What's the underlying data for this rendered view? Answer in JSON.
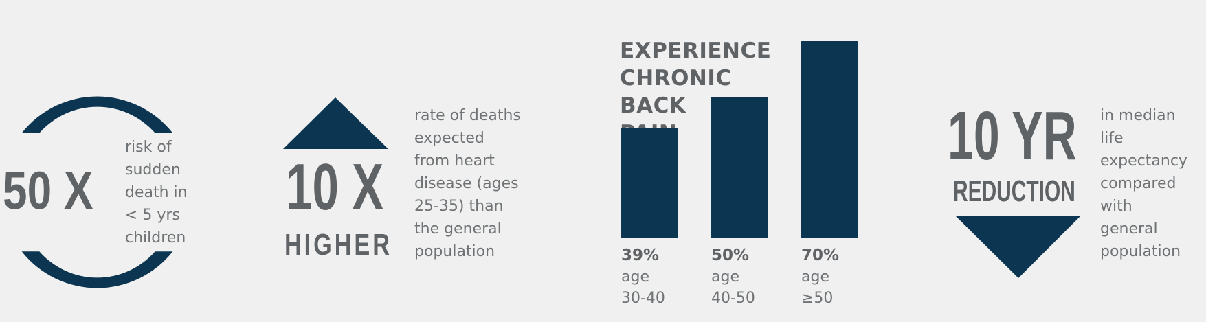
{
  "stat_50x": {
    "value": "50 X",
    "description_lines": [
      "risk of",
      "sudden",
      "death in",
      "< 5 yrs",
      "children"
    ]
  },
  "stat_10x": {
    "value": "10 X",
    "suffix": "HIGHER",
    "description_lines": [
      "rate of deaths",
      "expected",
      "from heart",
      "disease (ages",
      "25-35) than",
      "the general",
      "population"
    ]
  },
  "stat_10yr": {
    "value": "10 YR",
    "suffix": "REDUCTION",
    "description_lines": [
      "in median",
      "life",
      "expectancy",
      "compared",
      "with",
      "general",
      "population"
    ]
  },
  "colors": {
    "accent": "#0b3550",
    "stat_text": "#5f6366",
    "body_text": "#6f7375",
    "background": "#f0f0f0"
  },
  "chart_data": {
    "type": "bar",
    "title_lines": [
      "EXPERIENCE",
      "CHRONIC BACK",
      "PAIN"
    ],
    "categories": [
      "age 30-40",
      "age 40-50",
      "age ≥50"
    ],
    "category_lines": [
      [
        "age",
        "30-40"
      ],
      [
        "age",
        "40-50"
      ],
      [
        "age",
        "≥50"
      ]
    ],
    "values": [
      39,
      50,
      70
    ],
    "value_labels": [
      "39%",
      "50%",
      "70%"
    ],
    "unit": "%",
    "ylim": [
      0,
      70
    ],
    "grid": false,
    "legend": "none"
  }
}
